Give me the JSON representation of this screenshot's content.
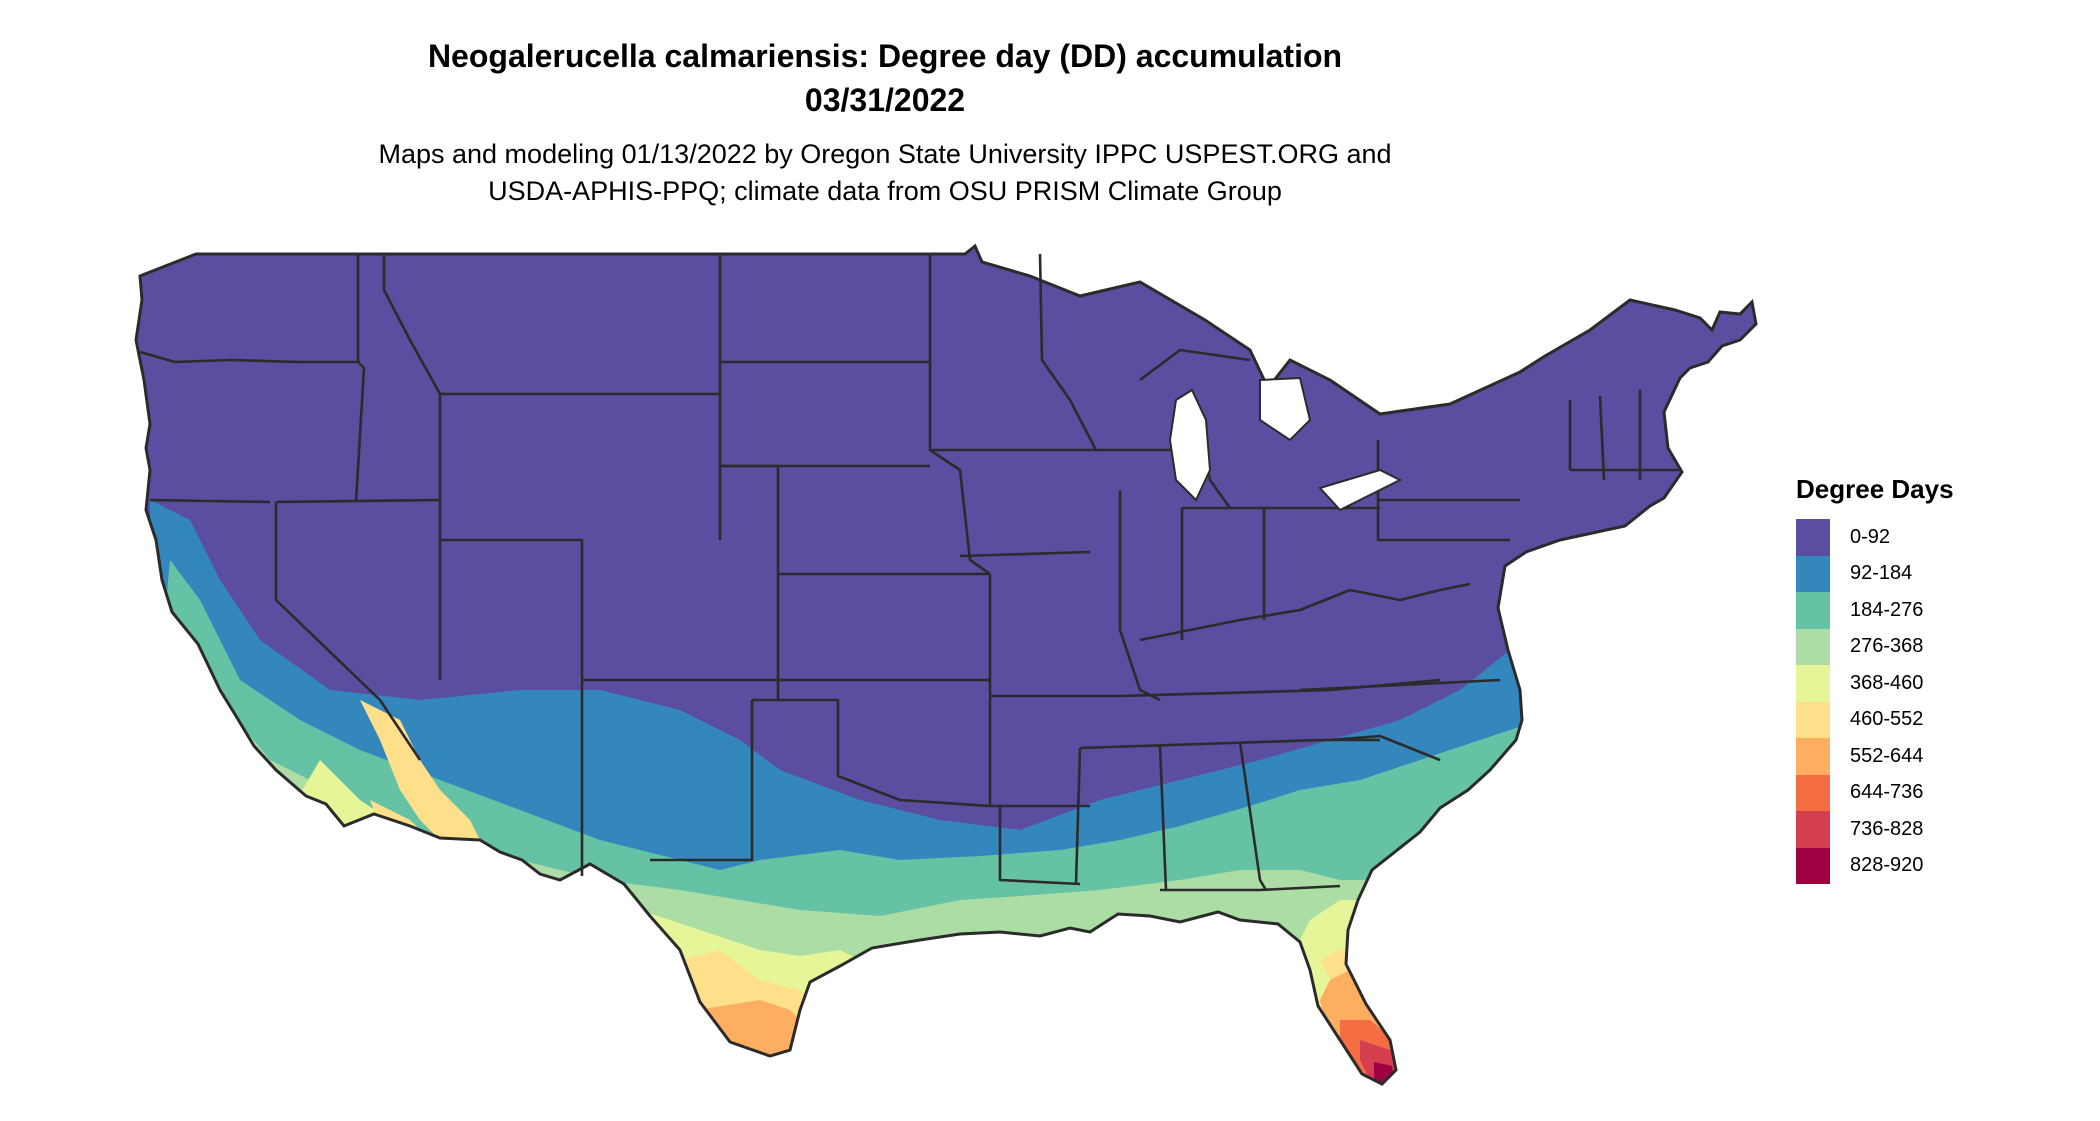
{
  "title": {
    "line1": "Neogalerucella calmariensis: Degree day (DD) accumulation",
    "line2": "03/31/2022"
  },
  "subtitle": {
    "line1": "Maps and modeling 01/13/2022 by Oregon State University IPPC USPEST.ORG and",
    "line2": "USDA-APHIS-PPQ; climate data from OSU PRISM Climate Group"
  },
  "legend": {
    "title": "Degree Days",
    "items": [
      {
        "label": "0-92",
        "color": "#5b4ea0"
      },
      {
        "label": "92-184",
        "color": "#3487bc"
      },
      {
        "label": "184-276",
        "color": "#66c2a5"
      },
      {
        "label": "276-368",
        "color": "#abdda4"
      },
      {
        "label": "368-460",
        "color": "#e6f598"
      },
      {
        "label": "460-552",
        "color": "#fee08b"
      },
      {
        "label": "552-644",
        "color": "#fdae61"
      },
      {
        "label": "644-736",
        "color": "#f46d43"
      },
      {
        "label": "736-828",
        "color": "#d53e4f"
      },
      {
        "label": "828-920",
        "color": "#9e0142"
      }
    ]
  },
  "map": {
    "region": "Contiguous United States",
    "border_color": "#2b2b2b"
  }
}
